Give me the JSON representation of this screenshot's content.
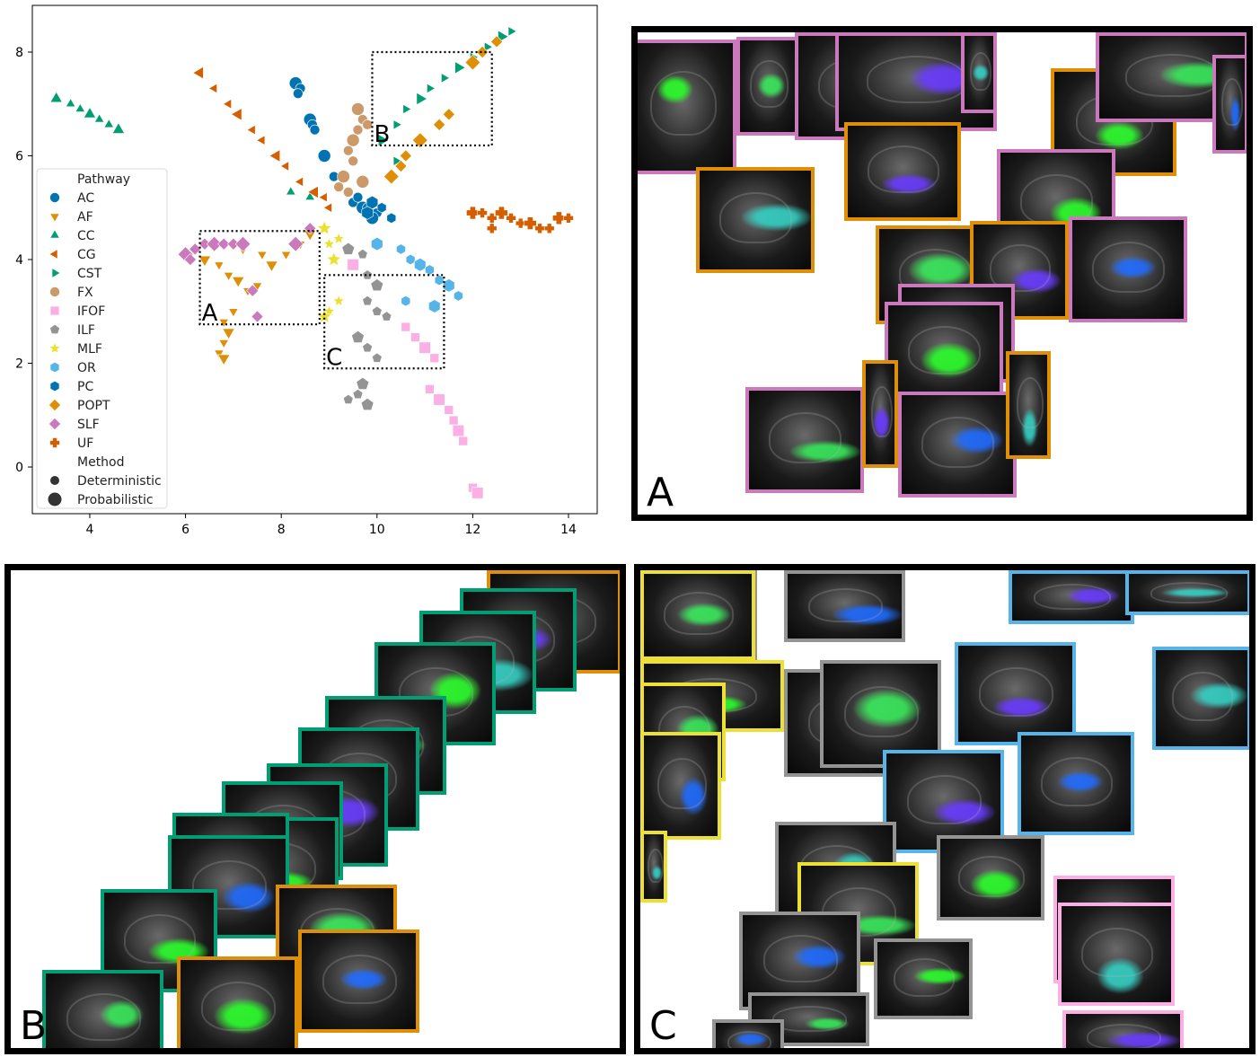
{
  "chart_data": {
    "type": "scatter",
    "title": "",
    "xlabel": "",
    "ylabel": "",
    "xlim": [
      2.8,
      14.6
    ],
    "ylim": [
      -0.9,
      8.9
    ],
    "xticks": [
      "4",
      "6",
      "8",
      "10",
      "12",
      "14"
    ],
    "yticks": [
      "0",
      "2",
      "4",
      "6",
      "8"
    ],
    "grid": false,
    "legend": {
      "placement": "lower-left",
      "pathway_title": "Pathway",
      "method_title": "Method",
      "methods": [
        {
          "name": "Deterministic",
          "size": "small"
        },
        {
          "name": "Probabilistic",
          "size": "large"
        }
      ]
    },
    "series": [
      {
        "name": "AC",
        "color": "#0173b2",
        "marker": "circle",
        "points": [
          [
            8.3,
            7.4
          ],
          [
            8.4,
            7.3
          ],
          [
            8.35,
            7.2
          ],
          [
            8.6,
            6.7
          ],
          [
            8.65,
            6.6
          ],
          [
            8.7,
            6.5
          ],
          [
            8.9,
            6.0
          ],
          [
            9.1,
            5.6
          ],
          [
            9.5,
            5.1
          ],
          [
            9.7,
            5.0
          ],
          [
            9.8,
            5.0
          ],
          [
            10.0,
            4.9
          ],
          [
            9.9,
            4.8
          ],
          [
            9.6,
            5.2
          ]
        ]
      },
      {
        "name": "AF",
        "color": "#de8f05",
        "marker": "triangle-down",
        "points": [
          [
            6.4,
            4.0
          ],
          [
            6.7,
            3.9
          ],
          [
            6.9,
            3.7
          ],
          [
            7.1,
            3.6
          ],
          [
            7.3,
            3.4
          ],
          [
            7.5,
            3.5
          ],
          [
            7.8,
            3.9
          ],
          [
            8.1,
            4.1
          ],
          [
            8.4,
            4.3
          ],
          [
            8.6,
            4.5
          ],
          [
            7.0,
            3.0
          ],
          [
            6.8,
            2.8
          ],
          [
            6.9,
            2.6
          ],
          [
            6.8,
            2.4
          ],
          [
            6.7,
            2.2
          ],
          [
            6.8,
            2.1
          ],
          [
            7.2,
            4.2
          ],
          [
            7.6,
            4.1
          ]
        ]
      },
      {
        "name": "CC",
        "color": "#029e73",
        "marker": "triangle-up",
        "points": [
          [
            3.3,
            7.1
          ],
          [
            3.6,
            7.0
          ],
          [
            3.8,
            6.9
          ],
          [
            4.0,
            6.8
          ],
          [
            4.2,
            6.7
          ],
          [
            4.4,
            6.6
          ],
          [
            4.6,
            6.5
          ],
          [
            8.2,
            5.3
          ],
          [
            8.6,
            5.2
          ]
        ]
      },
      {
        "name": "CG",
        "color": "#d55e00",
        "marker": "triangle-left",
        "points": [
          [
            6.3,
            7.6
          ],
          [
            6.6,
            7.3
          ],
          [
            6.9,
            7.0
          ],
          [
            7.1,
            6.8
          ],
          [
            7.4,
            6.5
          ],
          [
            7.6,
            6.3
          ],
          [
            7.9,
            6.0
          ],
          [
            8.1,
            5.8
          ],
          [
            8.4,
            5.5
          ],
          [
            8.7,
            5.3
          ],
          [
            9.0,
            5.0
          ],
          [
            8.9,
            5.2
          ]
        ]
      },
      {
        "name": "CST",
        "color": "#029e73",
        "marker": "triangle-right",
        "points": [
          [
            10.1,
            6.3
          ],
          [
            10.4,
            6.6
          ],
          [
            10.6,
            6.9
          ],
          [
            10.9,
            7.1
          ],
          [
            11.1,
            7.3
          ],
          [
            11.4,
            7.5
          ],
          [
            11.7,
            7.7
          ],
          [
            12.0,
            7.9
          ],
          [
            12.3,
            8.1
          ],
          [
            12.6,
            8.3
          ],
          [
            12.8,
            8.4
          ],
          [
            10.4,
            5.9
          ]
        ]
      },
      {
        "name": "FX",
        "color": "#cc9a6a",
        "marker": "circle",
        "points": [
          [
            9.6,
            6.9
          ],
          [
            9.7,
            6.7
          ],
          [
            9.6,
            6.5
          ],
          [
            9.5,
            6.3
          ],
          [
            9.4,
            6.1
          ],
          [
            9.5,
            5.9
          ],
          [
            9.3,
            5.6
          ],
          [
            9.2,
            5.4
          ],
          [
            9.4,
            5.3
          ],
          [
            9.7,
            5.5
          ],
          [
            9.8,
            6.6
          ]
        ]
      },
      {
        "name": "IFOF",
        "color": "#fbafe4",
        "marker": "square",
        "points": [
          [
            9.5,
            3.9
          ],
          [
            10.6,
            2.7
          ],
          [
            10.8,
            2.5
          ],
          [
            11.0,
            2.3
          ],
          [
            11.2,
            2.1
          ],
          [
            11.1,
            1.5
          ],
          [
            11.3,
            1.3
          ],
          [
            11.5,
            1.1
          ],
          [
            11.6,
            0.9
          ],
          [
            11.7,
            0.7
          ],
          [
            11.8,
            0.5
          ],
          [
            12.0,
            -0.4
          ],
          [
            12.1,
            -0.5
          ]
        ]
      },
      {
        "name": "ILF",
        "color": "#949494",
        "marker": "pentagon",
        "points": [
          [
            9.4,
            4.2
          ],
          [
            9.7,
            4.1
          ],
          [
            9.8,
            3.7
          ],
          [
            10.0,
            3.5
          ],
          [
            9.8,
            3.2
          ],
          [
            10.0,
            3.0
          ],
          [
            9.6,
            2.5
          ],
          [
            9.8,
            2.3
          ],
          [
            10.0,
            2.1
          ],
          [
            9.7,
            1.6
          ],
          [
            9.6,
            1.4
          ],
          [
            9.4,
            1.3
          ],
          [
            9.8,
            1.2
          ],
          [
            10.2,
            2.9
          ]
        ]
      },
      {
        "name": "MLF",
        "color": "#ece133",
        "marker": "star",
        "points": [
          [
            8.9,
            4.6
          ],
          [
            9.0,
            4.3
          ],
          [
            9.2,
            4.4
          ],
          [
            9.1,
            4.0
          ],
          [
            9.2,
            3.2
          ],
          [
            9.0,
            3.0
          ],
          [
            8.9,
            2.9
          ]
        ]
      },
      {
        "name": "OR",
        "color": "#56b4e9",
        "marker": "hexagon",
        "points": [
          [
            10.0,
            4.3
          ],
          [
            10.5,
            4.2
          ],
          [
            10.7,
            4.0
          ],
          [
            10.9,
            3.9
          ],
          [
            11.1,
            3.8
          ],
          [
            11.3,
            3.6
          ],
          [
            11.5,
            3.5
          ],
          [
            11.7,
            3.3
          ],
          [
            10.6,
            3.2
          ],
          [
            11.2,
            3.1
          ]
        ]
      },
      {
        "name": "PC",
        "color": "#0173b2",
        "marker": "hexagon",
        "points": [
          [
            9.9,
            5.1
          ],
          [
            10.1,
            5.0
          ],
          [
            10.3,
            4.8
          ],
          [
            9.8,
            4.9
          ]
        ]
      },
      {
        "name": "POPT",
        "color": "#de8f05",
        "marker": "diamond",
        "points": [
          [
            10.3,
            5.6
          ],
          [
            10.5,
            5.8
          ],
          [
            10.6,
            6.0
          ],
          [
            10.9,
            6.3
          ],
          [
            11.3,
            6.6
          ],
          [
            11.5,
            6.8
          ],
          [
            12.0,
            7.8
          ],
          [
            12.2,
            8.0
          ],
          [
            12.5,
            8.2
          ]
        ]
      },
      {
        "name": "SLF",
        "color": "#cc78bc",
        "marker": "diamond",
        "points": [
          [
            6.0,
            4.1
          ],
          [
            6.2,
            4.2
          ],
          [
            6.4,
            4.3
          ],
          [
            6.6,
            4.3
          ],
          [
            6.8,
            4.3
          ],
          [
            7.0,
            4.3
          ],
          [
            7.2,
            4.3
          ],
          [
            7.4,
            3.4
          ],
          [
            7.5,
            2.9
          ],
          [
            8.3,
            4.3
          ],
          [
            8.6,
            4.6
          ],
          [
            6.1,
            4.0
          ]
        ]
      },
      {
        "name": "UF",
        "color": "#d55e00",
        "marker": "plus",
        "points": [
          [
            12.0,
            4.9
          ],
          [
            12.2,
            4.9
          ],
          [
            12.4,
            4.8
          ],
          [
            12.6,
            4.9
          ],
          [
            12.8,
            4.8
          ],
          [
            13.0,
            4.7
          ],
          [
            13.2,
            4.7
          ],
          [
            13.4,
            4.6
          ],
          [
            13.6,
            4.6
          ],
          [
            13.8,
            4.8
          ],
          [
            14.0,
            4.8
          ],
          [
            12.4,
            4.6
          ]
        ]
      }
    ],
    "annotations": [
      {
        "label": "A",
        "x0": 6.3,
        "x1": 8.8,
        "y0": 2.75,
        "y1": 4.55
      },
      {
        "label": "B",
        "x0": 9.9,
        "x1": 12.4,
        "y0": 6.2,
        "y1": 8.0
      },
      {
        "label": "C",
        "x0": 8.9,
        "x1": 11.4,
        "y0": 1.9,
        "y1": 3.7
      }
    ]
  },
  "panels": {
    "a_label": "A",
    "b_label": "B",
    "c_label": "C"
  }
}
